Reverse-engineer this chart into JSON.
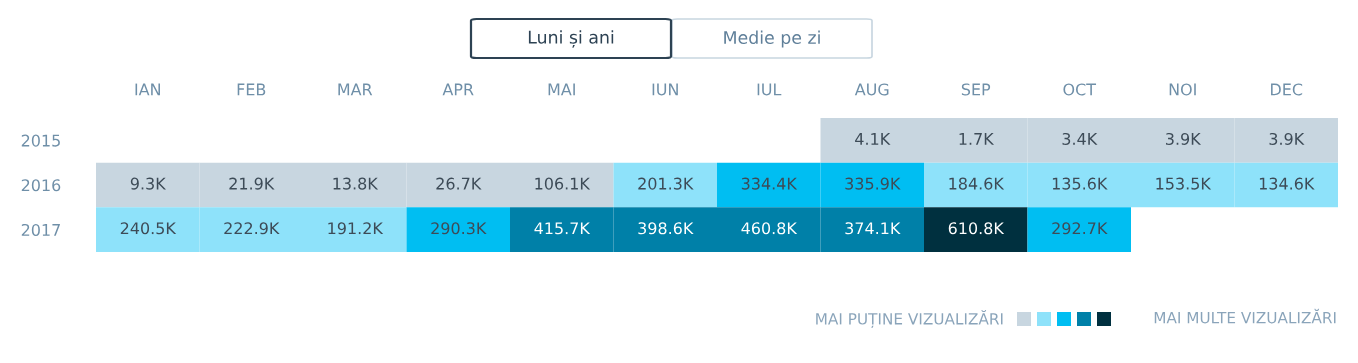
{
  "chart_data": {
    "type": "heatmap",
    "categories": [
      "IAN",
      "FEB",
      "MAR",
      "APR",
      "MAI",
      "IUN",
      "IUL",
      "AUG",
      "SEP",
      "OCT",
      "NOI",
      "DEC"
    ],
    "y_categories": [
      "2015",
      "2016",
      "2017"
    ],
    "cells": [
      [
        null,
        null,
        null,
        null,
        null,
        null,
        null,
        4.1,
        1.7,
        3.4,
        3.9,
        3.9
      ],
      [
        9.3,
        21.9,
        13.8,
        26.7,
        106.1,
        201.3,
        334.4,
        335.9,
        184.6,
        135.6,
        153.5,
        134.6
      ],
      [
        240.5,
        222.9,
        191.2,
        290.3,
        415.7,
        398.6,
        460.8,
        374.1,
        610.8,
        292.7,
        null,
        null
      ]
    ],
    "cell_labels": [
      [
        null,
        null,
        null,
        null,
        null,
        null,
        null,
        "4.1K",
        "1.7K",
        "3.4K",
        "3.9K",
        "3.9K"
      ],
      [
        "9.3K",
        "21.9K",
        "13.8K",
        "26.7K",
        "106.1K",
        "201.3K",
        "334.4K",
        "335.9K",
        "184.6K",
        "135.6K",
        "153.5K",
        "134.6K"
      ],
      [
        "240.5K",
        "222.9K",
        "191.2K",
        "290.3K",
        "415.7K",
        "398.6K",
        "460.8K",
        "374.1K",
        "610.8K",
        "292.7K",
        null,
        null
      ]
    ],
    "colors": [
      "#c8d6e0",
      "#8ee2fa",
      "#00bef2",
      "#0080a8",
      "#00303f"
    ],
    "annotations": [
      "Luni și ani",
      "Medie pe zi",
      "MAI PUȚINE VIZUALIZĂRI",
      "MAI MULTE VIZUALIZĂRI"
    ]
  }
}
